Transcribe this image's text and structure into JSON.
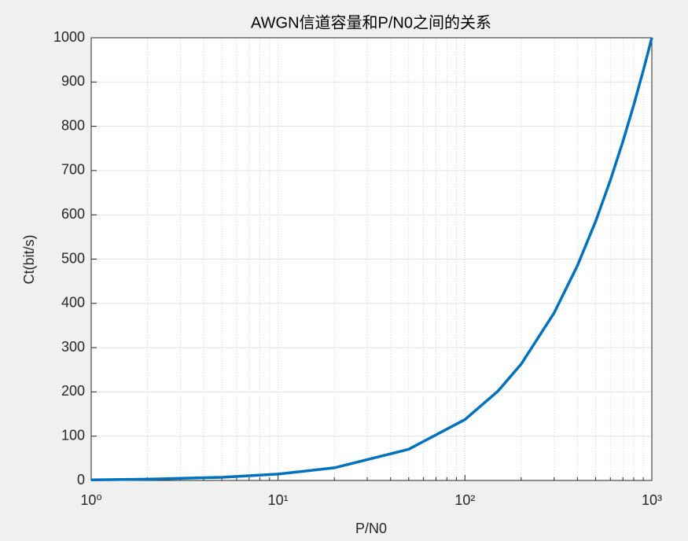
{
  "chart_data": {
    "type": "line",
    "title": "AWGN信道容量和P/N0之间的关系",
    "xlabel": "P/N0",
    "ylabel": "Ct(bit/s)",
    "xscale": "log",
    "x": [
      1,
      2,
      5,
      10,
      20,
      50,
      100,
      150,
      200,
      300,
      400,
      500,
      600,
      700,
      800,
      900,
      1000
    ],
    "series": [
      {
        "color": "#0072bd",
        "values": [
          1.4,
          2.9,
          7.2,
          14.4,
          28.6,
          70.4,
          137.5,
          201.6,
          263.0,
          378.5,
          485.4,
          585.0,
          678.1,
          765.5,
          848.0,
          926.0,
          1000
        ]
      }
    ],
    "xlim": [
      1,
      1000
    ],
    "ylim": [
      0,
      1000
    ],
    "xticks": [
      {
        "value": 1,
        "label": "10⁰"
      },
      {
        "value": 10,
        "label": "10¹"
      },
      {
        "value": 100,
        "label": "10²"
      },
      {
        "value": 1000,
        "label": "10³"
      }
    ],
    "xminorticks": [
      2,
      3,
      4,
      5,
      6,
      7,
      8,
      9,
      20,
      30,
      40,
      50,
      60,
      70,
      80,
      90,
      200,
      300,
      400,
      500,
      600,
      700,
      800,
      900
    ],
    "yticks": [
      0,
      100,
      200,
      300,
      400,
      500,
      600,
      700,
      800,
      900,
      1000
    ],
    "grid": true
  }
}
